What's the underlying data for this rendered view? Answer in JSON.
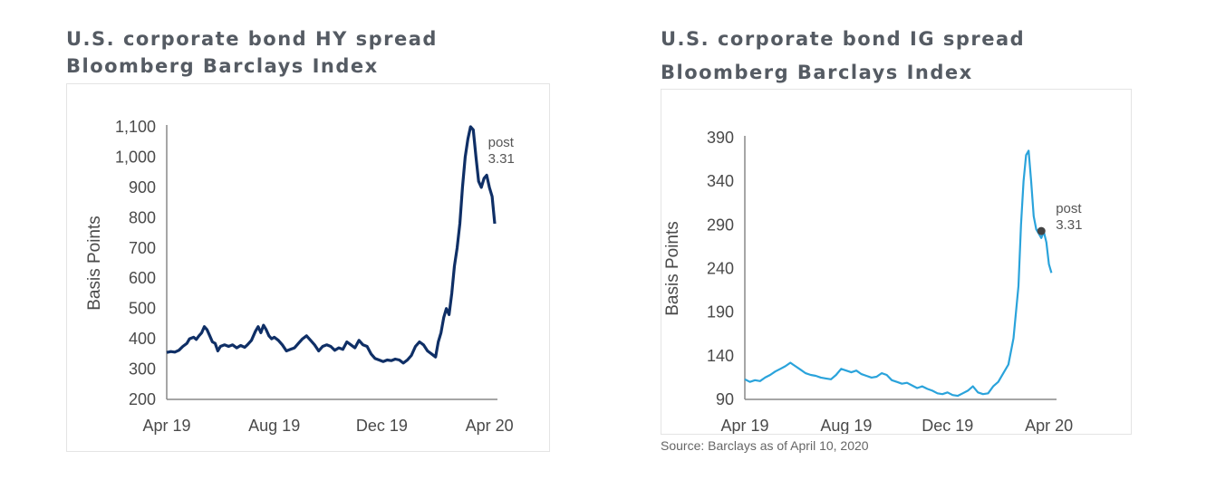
{
  "charts": [
    {
      "title_line1": "U.S. corporate bond HY spread",
      "title_line2": "Bloomberg Barclays Index",
      "color": "#0f2f66"
    },
    {
      "title_line1": "U.S. corporate bond IG spread",
      "title_line2": "Bloomberg Barclays Index",
      "color": "#2aa3db"
    }
  ],
  "source": "Source: Barclays as of April 10, 2020",
  "chart_data": [
    {
      "type": "line",
      "title": "U.S. corporate bond HY spread Bloomberg Barclays Index",
      "ylabel": "Basis Points",
      "xlabel": "",
      "ylim": [
        200,
        1100
      ],
      "yticks": [
        "200",
        "300",
        "400",
        "500",
        "600",
        "700",
        "800",
        "900",
        "1,000",
        "1,100"
      ],
      "xticks": [
        "Apr 19",
        "Aug 19",
        "Dec 19",
        "Apr 20"
      ],
      "xlim": [
        0,
        12.3
      ],
      "xtick_positions": [
        0,
        4,
        8,
        12
      ],
      "annotation": {
        "text_line1": "post",
        "text_line2": "3.31"
      },
      "series": [
        {
          "x": [
            0,
            0.15,
            0.3,
            0.45,
            0.6,
            0.75,
            0.85,
            1.0,
            1.1,
            1.2,
            1.3,
            1.4,
            1.5,
            1.6,
            1.7,
            1.8,
            1.9,
            2.0,
            2.15,
            2.3,
            2.45,
            2.6,
            2.75,
            2.9,
            3.0,
            3.15,
            3.3,
            3.4,
            3.5,
            3.6,
            3.7,
            3.8,
            3.9,
            4.0,
            4.15,
            4.3,
            4.45,
            4.6,
            4.75,
            4.9,
            5.05,
            5.2,
            5.35,
            5.5,
            5.65,
            5.8,
            5.95,
            6.1,
            6.25,
            6.4,
            6.55,
            6.7,
            6.85,
            7.0,
            7.15,
            7.3,
            7.45,
            7.6,
            7.75,
            7.9,
            8.05,
            8.2,
            8.35,
            8.5,
            8.65,
            8.8,
            8.95,
            9.1,
            9.25,
            9.4,
            9.55,
            9.7,
            9.85,
            10.0,
            10.1,
            10.2,
            10.3,
            10.4,
            10.5,
            10.6,
            10.7,
            10.8,
            10.9,
            11.0,
            11.1,
            11.2,
            11.3,
            11.4,
            11.5,
            11.6,
            11.7,
            11.8,
            11.9,
            12.0,
            12.1,
            12.2
          ],
          "y": [
            355,
            358,
            356,
            362,
            375,
            385,
            400,
            405,
            398,
            410,
            420,
            440,
            430,
            410,
            390,
            385,
            360,
            375,
            380,
            375,
            380,
            370,
            378,
            372,
            380,
            395,
            425,
            440,
            420,
            445,
            430,
            410,
            400,
            405,
            395,
            380,
            360,
            365,
            370,
            385,
            400,
            410,
            395,
            380,
            360,
            375,
            380,
            375,
            362,
            370,
            365,
            390,
            380,
            370,
            395,
            380,
            375,
            350,
            335,
            330,
            325,
            330,
            328,
            333,
            330,
            320,
            330,
            345,
            375,
            390,
            380,
            360,
            350,
            340,
            390,
            420,
            470,
            500,
            480,
            550,
            640,
            700,
            780,
            900,
            1000,
            1060,
            1100,
            1090,
            1000,
            920,
            900,
            930,
            940,
            900,
            870,
            780
          ]
        }
      ]
    },
    {
      "type": "line",
      "title": "U.S. corporate bond IG spread Bloomberg Barclays Index",
      "ylabel": "Basis Points",
      "xlabel": "",
      "ylim": [
        90,
        390
      ],
      "yticks": [
        "90",
        "140",
        "190",
        "240",
        "290",
        "340",
        "390"
      ],
      "xticks": [
        "Apr 19",
        "Aug 19",
        "Dec 19",
        "Apr 20"
      ],
      "xlim": [
        0,
        12.3
      ],
      "xtick_positions": [
        0,
        4,
        8,
        12
      ],
      "annotation": {
        "text_line1": "post",
        "text_line2": "3.31",
        "x": 11.7,
        "y": 283
      },
      "series": [
        {
          "x": [
            0,
            0.2,
            0.4,
            0.6,
            0.8,
            1.0,
            1.2,
            1.4,
            1.6,
            1.8,
            1.9,
            2.0,
            2.2,
            2.4,
            2.6,
            2.8,
            3.0,
            3.2,
            3.4,
            3.6,
            3.8,
            4.0,
            4.2,
            4.4,
            4.6,
            4.8,
            5.0,
            5.2,
            5.4,
            5.6,
            5.8,
            6.0,
            6.2,
            6.4,
            6.6,
            6.8,
            7.0,
            7.2,
            7.4,
            7.6,
            7.8,
            8.0,
            8.2,
            8.4,
            8.6,
            8.8,
            9.0,
            9.2,
            9.4,
            9.6,
            9.8,
            10.0,
            10.2,
            10.4,
            10.6,
            10.8,
            10.9,
            11.0,
            11.1,
            11.2,
            11.3,
            11.4,
            11.5,
            11.6,
            11.7,
            11.8,
            11.9,
            12.0,
            12.1
          ],
          "y": [
            113,
            110,
            112,
            111,
            115,
            118,
            122,
            125,
            128,
            132,
            130,
            128,
            124,
            120,
            118,
            117,
            115,
            114,
            113,
            118,
            125,
            123,
            121,
            123,
            119,
            117,
            115,
            116,
            120,
            118,
            112,
            110,
            108,
            109,
            106,
            103,
            105,
            102,
            100,
            97,
            96,
            98,
            95,
            94,
            97,
            100,
            105,
            98,
            96,
            97,
            105,
            110,
            120,
            130,
            160,
            220,
            290,
            340,
            370,
            375,
            340,
            300,
            285,
            280,
            275,
            282,
            270,
            245,
            235
          ]
        }
      ]
    }
  ]
}
